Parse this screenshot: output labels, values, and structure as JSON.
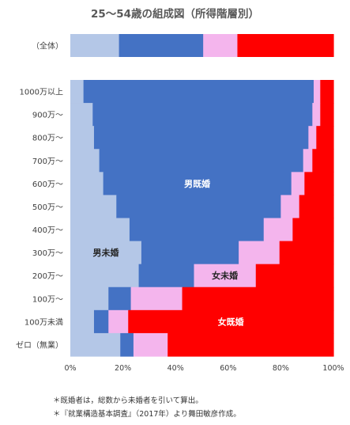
{
  "chart_data": {
    "type": "bar",
    "subtype": "stacked-horizontal-100",
    "title": "25〜54歳の組成図（所得階層別）",
    "categories": [
      "（全体）",
      "1000万以上",
      "900万〜",
      "800万〜",
      "700万〜",
      "600万〜",
      "500万〜",
      "400万〜",
      "300万〜",
      "200万〜",
      "100万〜",
      "100万未満",
      "ゼロ（無業）"
    ],
    "series": [
      {
        "name": "男未婚",
        "color": "#b4c7e7",
        "values": [
          0.185,
          0.05,
          0.085,
          0.09,
          0.11,
          0.125,
          0.175,
          0.225,
          0.27,
          0.26,
          0.145,
          0.09,
          0.19
        ]
      },
      {
        "name": "男既婚",
        "color": "#4472c4",
        "values": [
          0.32,
          0.875,
          0.835,
          0.815,
          0.775,
          0.715,
          0.625,
          0.51,
          0.37,
          0.21,
          0.085,
          0.055,
          0.05
        ]
      },
      {
        "name": "女未婚",
        "color": "#f4b5ed",
        "values": [
          0.13,
          0.025,
          0.03,
          0.03,
          0.035,
          0.05,
          0.07,
          0.11,
          0.155,
          0.235,
          0.195,
          0.075,
          0.13
        ]
      },
      {
        "name": "女既婚",
        "color": "#ff0000",
        "values": [
          0.365,
          0.05,
          0.05,
          0.065,
          0.08,
          0.11,
          0.13,
          0.155,
          0.205,
          0.295,
          0.575,
          0.78,
          0.63
        ]
      }
    ],
    "annotations": [
      {
        "text": "男既婚",
        "category": "600万〜",
        "series": "男既婚"
      },
      {
        "text": "男未婚",
        "category": "300万〜",
        "series": "男未婚"
      },
      {
        "text": "女未婚",
        "category": "200万〜",
        "series": "女未婚"
      },
      {
        "text": "女既婚",
        "category": "100万未満",
        "series": "女既婚"
      }
    ],
    "xlim": [
      0,
      1
    ],
    "xticks": [
      "0%",
      "20%",
      "40%",
      "60%",
      "80%",
      "100%"
    ],
    "grid": false,
    "legend": "none"
  },
  "footnotes": [
    "＊既婚者は，総数から未婚者を引いて算出。",
    "＊『就業構造基本調査』（2017年）より舞田敏彦作成。"
  ]
}
